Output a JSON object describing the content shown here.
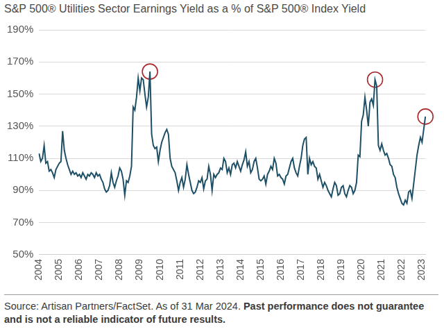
{
  "chart_data": {
    "type": "line",
    "title": "S&P 500® Utilities Sector Earnings Yield as a % of S&P 500® Index Yield",
    "source": "Source: Artisan Partners/FactSet. As of 31 Mar 2024.",
    "note": "Past performance does not guarantee and is not a reliable indicator of future results.",
    "categories": [
      "2004",
      null,
      null,
      null,
      null,
      null,
      null,
      null,
      null,
      null,
      null,
      null,
      "2005",
      null,
      null,
      null,
      null,
      null,
      null,
      null,
      null,
      null,
      null,
      null,
      "2006",
      null,
      null,
      null,
      null,
      null,
      null,
      null,
      null,
      null,
      null,
      null,
      "2007",
      null,
      null,
      null,
      null,
      null,
      null,
      null,
      null,
      null,
      null,
      null,
      "2008",
      null,
      null,
      null,
      null,
      null,
      null,
      null,
      null,
      null,
      null,
      null,
      "2009",
      null,
      null,
      null,
      null,
      null,
      null,
      null,
      null,
      null,
      null,
      null,
      "2010",
      null,
      null,
      null,
      null,
      null,
      null,
      null,
      null,
      null,
      null,
      null,
      "2011",
      null,
      null,
      null,
      null,
      null,
      null,
      null,
      null,
      null,
      null,
      null,
      "2012",
      null,
      null,
      null,
      null,
      null,
      null,
      null,
      null,
      null,
      null,
      null,
      "2013",
      null,
      null,
      null,
      null,
      null,
      null,
      null,
      null,
      null,
      null,
      null,
      "2014",
      null,
      null,
      null,
      null,
      null,
      null,
      null,
      null,
      null,
      null,
      null,
      "2015",
      null,
      null,
      null,
      null,
      null,
      null,
      null,
      null,
      null,
      null,
      null,
      "2016",
      null,
      null,
      null,
      null,
      null,
      null,
      null,
      null,
      null,
      null,
      null,
      "2017",
      null,
      null,
      null,
      null,
      null,
      null,
      null,
      null,
      null,
      null,
      null,
      "2018",
      null,
      null,
      null,
      null,
      null,
      null,
      null,
      null,
      null,
      null,
      null,
      "2019",
      null,
      null,
      null,
      null,
      null,
      null,
      null,
      null,
      null,
      null,
      null,
      "2020",
      null,
      null,
      null,
      null,
      null,
      null,
      null,
      null,
      null,
      null,
      null,
      "2021",
      null,
      null,
      null,
      null,
      null,
      null,
      null,
      null,
      null,
      null,
      null,
      "2022",
      null,
      null,
      null,
      null,
      null,
      null,
      null,
      null,
      null,
      null,
      null,
      "2023",
      null,
      null
    ],
    "series": [
      {
        "color": "#1d4f66",
        "line_style": "solid",
        "marker": "none",
        "values": [
          113,
          108,
          110,
          118,
          107,
          108,
          102,
          103,
          101,
          98,
          103,
          105,
          107,
          108,
          127,
          115,
          110,
          106,
          103,
          100,
          102,
          100,
          101,
          99,
          100,
          98,
          101,
          99,
          97,
          100,
          99,
          101,
          100,
          98,
          101,
          99,
          100,
          97,
          95,
          91,
          89,
          90,
          93,
          101,
          95,
          92,
          96,
          99,
          104,
          102,
          97,
          87,
          96,
          95,
          99,
          105,
          142,
          140,
          148,
          160,
          152,
          160,
          159,
          150,
          142,
          148,
          164,
          125,
          118,
          116,
          117,
          108,
          115,
          120,
          123,
          126,
          128,
          125,
          110,
          105,
          103,
          101,
          96,
          90,
          95,
          98,
          92,
          97,
          106,
          100,
          95,
          90,
          88,
          89,
          92,
          96,
          95,
          98,
          91,
          96,
          97,
          105,
          100,
          90,
          100,
          98,
          100,
          101,
          104,
          103,
          110,
          108,
          101,
          104,
          100,
          106,
          107,
          104,
          108,
          105,
          102,
          106,
          109,
          114,
          105,
          108,
          101,
          103,
          108,
          110,
          104,
          97,
          96,
          97,
          99,
          94,
          100,
          102,
          105,
          103,
          110,
          107,
          99,
          100,
          98,
          97,
          94,
          99,
          100,
          104,
          108,
          110,
          104,
          101,
          99,
          105,
          110,
          118,
          122,
          123,
          100,
          110,
          106,
          108,
          105,
          104,
          97,
          100,
          96,
          92,
          95,
          93,
          90,
          88,
          86,
          91,
          95,
          93,
          87,
          88,
          92,
          93,
          88,
          86,
          90,
          93,
          92,
          88,
          90,
          95,
          112,
          111,
          133,
          137,
          148,
          140,
          130,
          145,
          147,
          143,
          159,
          155,
          118,
          115,
          119,
          115,
          112,
          113,
          110,
          106,
          105,
          100,
          98,
          92,
          88,
          85,
          82,
          81,
          84,
          82,
          89,
          90,
          85,
          94,
          103,
          112,
          118,
          123,
          120,
          128,
          136
        ]
      },
      {
        "color": "#a8282c",
        "line_style": "none",
        "marker": "circle",
        "values": [
          null,
          null,
          null,
          null,
          null,
          null,
          null,
          null,
          null,
          null,
          null,
          null,
          null,
          null,
          null,
          null,
          null,
          null,
          null,
          null,
          null,
          null,
          null,
          null,
          null,
          null,
          null,
          null,
          null,
          null,
          null,
          null,
          null,
          null,
          null,
          null,
          null,
          null,
          null,
          null,
          null,
          null,
          null,
          null,
          null,
          null,
          null,
          null,
          null,
          null,
          null,
          null,
          null,
          null,
          null,
          null,
          null,
          null,
          null,
          null,
          null,
          null,
          null,
          null,
          null,
          null,
          164,
          null,
          null,
          null,
          null,
          null,
          null,
          null,
          null,
          null,
          null,
          null,
          null,
          null,
          null,
          null,
          null,
          null,
          null,
          null,
          null,
          null,
          null,
          null,
          null,
          null,
          null,
          null,
          null,
          null,
          null,
          null,
          null,
          null,
          null,
          null,
          null,
          null,
          null,
          null,
          null,
          null,
          null,
          null,
          null,
          null,
          null,
          null,
          null,
          null,
          null,
          null,
          null,
          null,
          null,
          null,
          null,
          null,
          null,
          null,
          null,
          null,
          null,
          null,
          null,
          null,
          null,
          null,
          null,
          null,
          null,
          null,
          null,
          null,
          null,
          null,
          null,
          null,
          null,
          null,
          null,
          null,
          null,
          null,
          null,
          null,
          null,
          null,
          null,
          null,
          null,
          null,
          null,
          null,
          null,
          null,
          null,
          null,
          null,
          null,
          null,
          null,
          null,
          null,
          null,
          null,
          null,
          null,
          null,
          null,
          null,
          null,
          null,
          null,
          null,
          null,
          null,
          null,
          null,
          null,
          null,
          null,
          null,
          null,
          null,
          null,
          null,
          null,
          null,
          null,
          null,
          null,
          null,
          null,
          159,
          null,
          null,
          null,
          null,
          null,
          null,
          null,
          null,
          null,
          null,
          null,
          null,
          null,
          null,
          null,
          null,
          null,
          null,
          null,
          null,
          null,
          null,
          null,
          null,
          null,
          null,
          null,
          null,
          null,
          136
        ]
      }
    ],
    "ylim": [
      50,
      190
    ],
    "yticks": [
      {
        "value": 50,
        "label": "50%"
      },
      {
        "value": 70,
        "label": "70%"
      },
      {
        "value": 90,
        "label": "90%"
      },
      {
        "value": 110,
        "label": "110%"
      },
      {
        "value": 130,
        "label": "130%"
      },
      {
        "value": 150,
        "label": "150%"
      },
      {
        "value": 170,
        "label": "170%"
      },
      {
        "value": 190,
        "label": "190%"
      }
    ],
    "grid": true
  }
}
